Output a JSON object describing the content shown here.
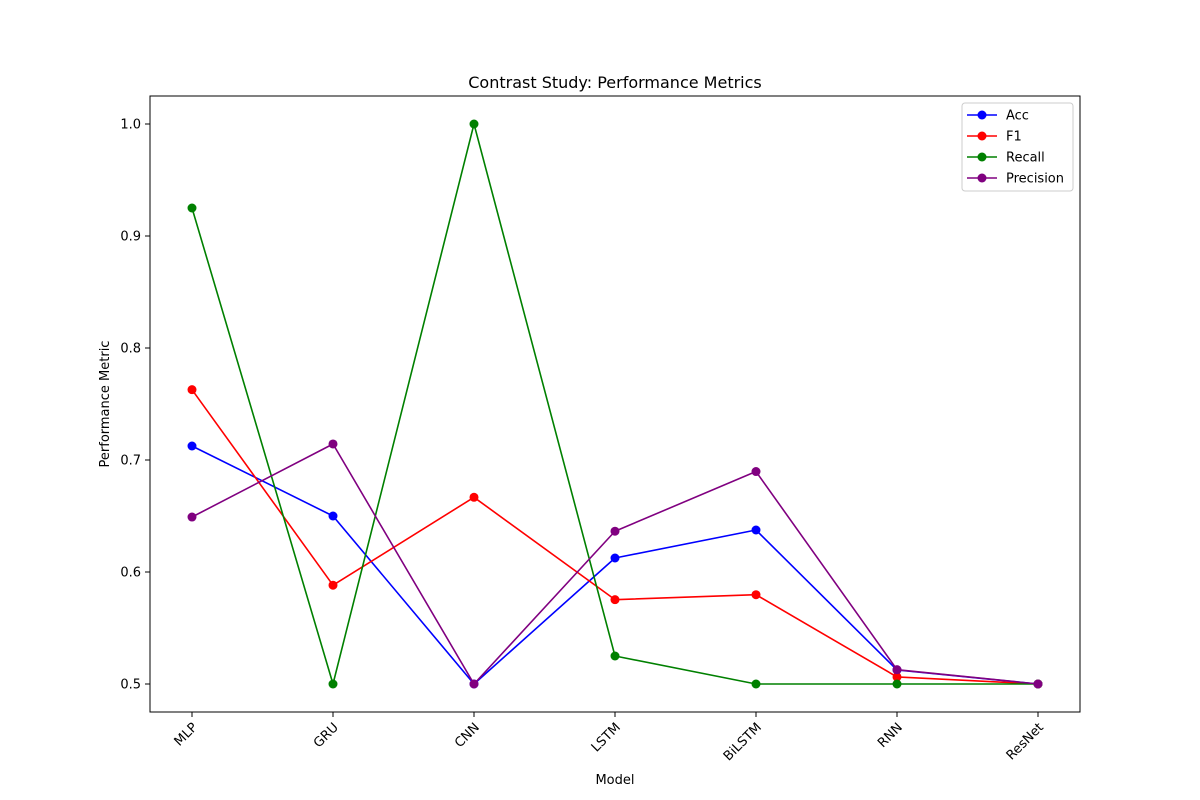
{
  "chart_data": {
    "type": "line",
    "title": "Contrast Study: Performance Metrics",
    "xlabel": "Model",
    "ylabel": "Performance Metric",
    "categories": [
      "MLP",
      "GRU",
      "CNN",
      "LSTM",
      "BiLSTM",
      "RNN",
      "ResNet"
    ],
    "ylim": [
      0.475,
      1.025
    ],
    "yticks": [
      0.5,
      0.6,
      0.7,
      0.8,
      0.9,
      1.0
    ],
    "ytick_labels": [
      "0.5",
      "0.6",
      "0.7",
      "0.8",
      "0.9",
      "1.0"
    ],
    "grid": false,
    "legend_position": "top-right",
    "series": [
      {
        "name": "Acc",
        "color": "#0000ff",
        "values": [
          0.7125,
          0.65,
          0.5,
          0.6125,
          0.6375,
          0.5125,
          0.5
        ]
      },
      {
        "name": "F1",
        "color": "#ff0000",
        "values": [
          0.7628,
          0.5882,
          0.6667,
          0.5753,
          0.5797,
          0.5063,
          0.5
        ]
      },
      {
        "name": "Recall",
        "color": "#008000",
        "values": [
          0.925,
          0.5,
          1.0,
          0.525,
          0.5,
          0.5,
          0.5
        ]
      },
      {
        "name": "Precision",
        "color": "#800080",
        "values": [
          0.6491,
          0.7143,
          0.5,
          0.6364,
          0.6897,
          0.5128,
          0.5
        ]
      }
    ]
  }
}
